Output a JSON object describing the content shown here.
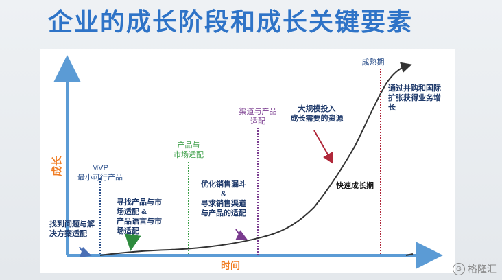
{
  "title": "企业的成长阶段和成长关键要素",
  "axis": {
    "y_label": "成长",
    "x_label": "时间",
    "color": "#5b9bd5",
    "label_color": "#f07c22"
  },
  "stages": [
    {
      "id": "mvp",
      "lines": [
        "MVP",
        "最小可行产品"
      ],
      "color": "#2b4f8a"
    },
    {
      "id": "pmf",
      "lines": [
        "产品与",
        "市场适配"
      ],
      "color": "#3fa04a"
    },
    {
      "id": "channel",
      "lines": [
        "渠道与产品",
        "适配"
      ],
      "color": "#7a3b8f"
    },
    {
      "id": "mature",
      "lines": [
        "成熟期"
      ],
      "color": "#2b4f8a"
    }
  ],
  "annotations": [
    {
      "id": "problem-fit",
      "lines": [
        "找到问题与解",
        "决方案适配"
      ]
    },
    {
      "id": "find-fit",
      "lines": [
        "寻找产品与市",
        "场适配 &",
        "产品语言与市",
        "场适配"
      ]
    },
    {
      "id": "optimize",
      "lines": [
        "优化销售漏斗",
        "&",
        "寻求销售渠道",
        "与产品的适配"
      ]
    },
    {
      "id": "scale",
      "lines": [
        "大规模投入",
        "成长需要的资源"
      ]
    },
    {
      "id": "rapid",
      "lines": [
        "快速成长期"
      ]
    },
    {
      "id": "expand",
      "lines": [
        "通过并购和国际",
        "扩张获得业务增",
        "长"
      ]
    }
  ],
  "colors": {
    "title": "#2e73c7",
    "annotation_text": "#1f3a6b",
    "curve": "#333333",
    "arrow_blue": "#4a6fb5",
    "arrow_green": "#2e8b3e",
    "arrow_purple": "#7a3b8f",
    "arrow_red": "#b0283a"
  },
  "watermark": "格隆汇"
}
